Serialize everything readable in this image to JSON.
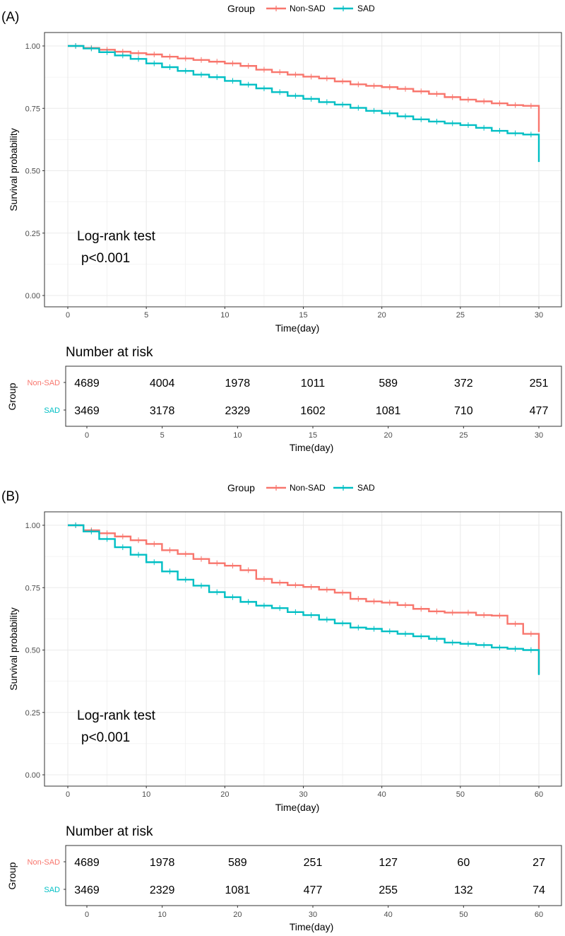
{
  "legend": {
    "title": "Group",
    "labels": [
      "Non-SAD",
      "SAD"
    ]
  },
  "colors": {
    "non_sad": "#F8766D",
    "sad": "#00BFC4",
    "grid": "#EBEBEB",
    "border": "#333333"
  },
  "chart_data": [
    {
      "panel_label": "(A)",
      "type": "line",
      "subtype": "kaplan-meier step",
      "xlabel": "Time(day)",
      "ylabel": "Survival probability",
      "xlim": [
        0,
        30
      ],
      "ylim": [
        0,
        1
      ],
      "xticks": [
        0,
        5,
        10,
        15,
        20,
        25,
        30
      ],
      "yticks": [
        0,
        0.25,
        0.5,
        0.75,
        1
      ],
      "ytick_labels": [
        "0.00",
        "0.25",
        "0.50",
        "0.75",
        "1.00"
      ],
      "annotation": {
        "line1": "Log-rank test",
        "line2": "p<0.001"
      },
      "series": [
        {
          "name": "Non-SAD",
          "x": [
            0,
            1,
            2,
            3,
            4,
            5,
            6,
            7,
            8,
            9,
            10,
            11,
            12,
            13,
            14,
            15,
            16,
            17,
            18,
            19,
            20,
            21,
            22,
            23,
            24,
            25,
            26,
            27,
            28,
            29,
            30,
            30
          ],
          "y": [
            1.0,
            0.992,
            0.985,
            0.977,
            0.971,
            0.966,
            0.957,
            0.95,
            0.944,
            0.937,
            0.93,
            0.92,
            0.905,
            0.895,
            0.885,
            0.877,
            0.87,
            0.858,
            0.846,
            0.84,
            0.835,
            0.828,
            0.818,
            0.808,
            0.795,
            0.785,
            0.778,
            0.77,
            0.763,
            0.76,
            0.758,
            0.655
          ]
        },
        {
          "name": "SAD",
          "x": [
            0,
            1,
            2,
            3,
            4,
            5,
            6,
            7,
            8,
            9,
            10,
            11,
            12,
            13,
            14,
            15,
            16,
            17,
            18,
            19,
            20,
            21,
            22,
            23,
            24,
            25,
            26,
            27,
            28,
            29,
            30,
            30
          ],
          "y": [
            1.0,
            0.99,
            0.975,
            0.962,
            0.948,
            0.93,
            0.915,
            0.9,
            0.885,
            0.875,
            0.86,
            0.845,
            0.83,
            0.815,
            0.8,
            0.788,
            0.775,
            0.765,
            0.752,
            0.74,
            0.73,
            0.718,
            0.706,
            0.697,
            0.69,
            0.683,
            0.672,
            0.66,
            0.65,
            0.645,
            0.64,
            0.535
          ]
        }
      ],
      "risk_table": {
        "title": "Number at risk",
        "ylabel": "Group",
        "xlabel": "Time(day)",
        "times": [
          0,
          5,
          10,
          15,
          20,
          25,
          30
        ],
        "rows": [
          {
            "group": "Non-SAD",
            "counts": [
              "4689",
              "4004",
              "1978",
              "1011",
              "589",
              "372",
              "251"
            ]
          },
          {
            "group": "SAD",
            "counts": [
              "3469",
              "3178",
              "2329",
              "1602",
              "1081",
              "710",
              "477"
            ]
          }
        ]
      }
    },
    {
      "panel_label": "(B)",
      "type": "line",
      "subtype": "kaplan-meier step",
      "xlabel": "Time(day)",
      "ylabel": "Survival probability",
      "xlim": [
        0,
        60
      ],
      "ylim": [
        0,
        1
      ],
      "xticks": [
        0,
        10,
        20,
        30,
        40,
        50,
        60
      ],
      "yticks": [
        0,
        0.25,
        0.5,
        0.75,
        1
      ],
      "ytick_labels": [
        "0.00",
        "0.25",
        "0.50",
        "0.75",
        "1.00"
      ],
      "annotation": {
        "line1": "Log-rank test",
        "line2": "p<0.001"
      },
      "series": [
        {
          "name": "Non-SAD",
          "x": [
            0,
            2,
            4,
            6,
            8,
            10,
            12,
            14,
            16,
            18,
            20,
            22,
            24,
            26,
            28,
            30,
            32,
            34,
            36,
            38,
            40,
            42,
            44,
            46,
            48,
            50,
            52,
            54,
            56,
            58,
            60,
            60
          ],
          "y": [
            1.0,
            0.98,
            0.968,
            0.955,
            0.94,
            0.925,
            0.9,
            0.885,
            0.865,
            0.848,
            0.838,
            0.82,
            0.785,
            0.77,
            0.76,
            0.753,
            0.742,
            0.73,
            0.705,
            0.695,
            0.69,
            0.68,
            0.665,
            0.655,
            0.65,
            0.65,
            0.64,
            0.638,
            0.605,
            0.565,
            0.565,
            0.405
          ]
        },
        {
          "name": "SAD",
          "x": [
            0,
            2,
            4,
            6,
            8,
            10,
            12,
            14,
            16,
            18,
            20,
            22,
            24,
            26,
            28,
            30,
            32,
            34,
            36,
            38,
            40,
            42,
            44,
            46,
            48,
            50,
            52,
            54,
            56,
            58,
            60,
            60
          ],
          "y": [
            1.0,
            0.975,
            0.945,
            0.912,
            0.882,
            0.852,
            0.815,
            0.782,
            0.758,
            0.732,
            0.712,
            0.693,
            0.678,
            0.668,
            0.652,
            0.64,
            0.622,
            0.607,
            0.59,
            0.585,
            0.575,
            0.565,
            0.555,
            0.545,
            0.53,
            0.525,
            0.52,
            0.51,
            0.505,
            0.5,
            0.498,
            0.4
          ]
        }
      ],
      "risk_table": {
        "title": "Number at risk",
        "ylabel": "Group",
        "xlabel": "Time(day)",
        "times": [
          0,
          10,
          20,
          30,
          40,
          50,
          60
        ],
        "rows": [
          {
            "group": "Non-SAD",
            "counts": [
              "4689",
              "1978",
              "589",
              "251",
              "127",
              "60",
              "27"
            ]
          },
          {
            "group": "SAD",
            "counts": [
              "3469",
              "2329",
              "1081",
              "477",
              "255",
              "132",
              "74"
            ]
          }
        ]
      }
    }
  ]
}
